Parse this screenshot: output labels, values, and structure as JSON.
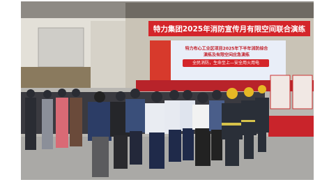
{
  "banner": "特力集团2025年消防宣传月有限空间联合演练",
  "backdrop": {
    "title": "特力布心工业区项目2025年下半年消防综合",
    "subtitle": "演练及有限空间应急演练",
    "slogan": "全民消防，生命至上—安全用火用电"
  }
}
